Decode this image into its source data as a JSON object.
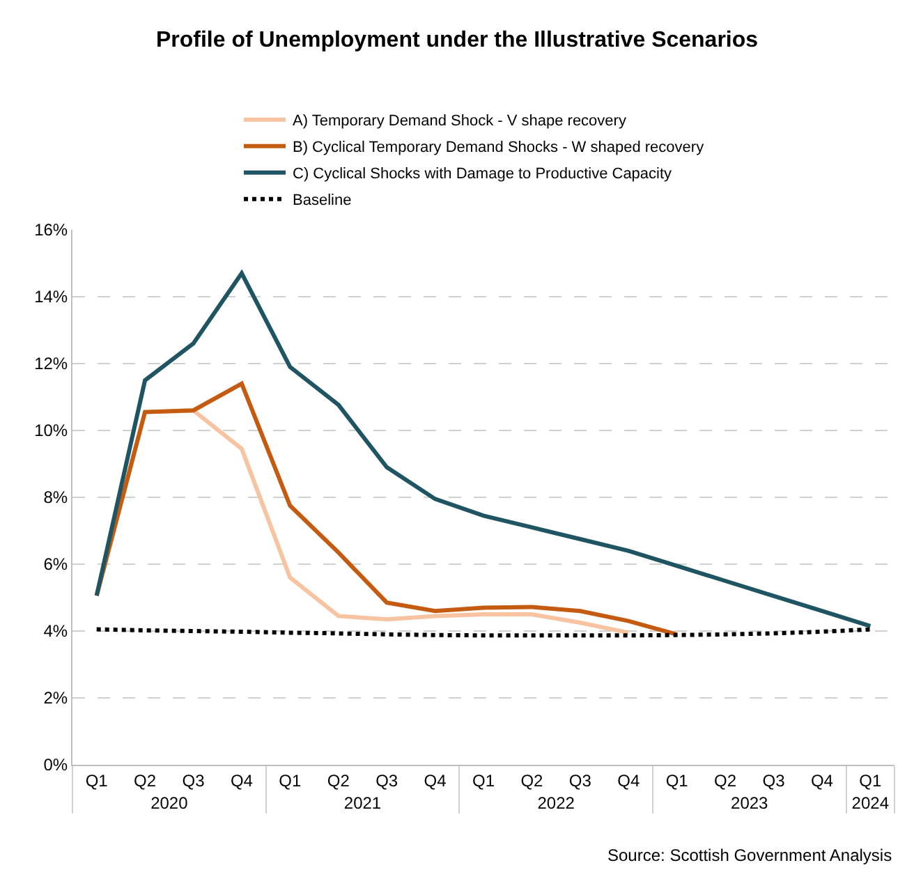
{
  "chart_data": {
    "type": "line",
    "title": "Profile of Unemployment under the Illustrative Scenarios",
    "categories": [
      "Q1",
      "Q2",
      "Q3",
      "Q4",
      "Q1",
      "Q2",
      "Q3",
      "Q4",
      "Q1",
      "Q2",
      "Q3",
      "Q4",
      "Q1",
      "Q2",
      "Q3",
      "Q4",
      "Q1"
    ],
    "series": [
      {
        "name": "A) Temporary Demand Shock - V shape recovery",
        "color": "#f7c3a0",
        "values": [
          5.06,
          10.55,
          10.6,
          9.45,
          5.6,
          4.45,
          4.35,
          4.45,
          4.5,
          4.5,
          4.25,
          3.95,
          null,
          null,
          null,
          null,
          null
        ]
      },
      {
        "name": "B) Cyclical Temporary Demand Shocks - W shaped recovery",
        "color": "#c55a11",
        "values": [
          5.06,
          10.55,
          10.6,
          11.4,
          7.75,
          6.35,
          4.85,
          4.6,
          4.7,
          4.72,
          4.6,
          4.3,
          3.9,
          null,
          null,
          null,
          null
        ]
      },
      {
        "name": "C) Cyclical Shocks with Damage to Productive Capacity",
        "color": "#1f5563",
        "values": [
          5.06,
          11.5,
          12.6,
          14.7,
          11.9,
          10.77,
          8.9,
          7.95,
          7.45,
          7.1,
          6.75,
          6.4,
          5.95,
          5.5,
          5.05,
          4.6,
          4.15
        ]
      },
      {
        "name": "Baseline",
        "color": "#000000",
        "line_style": "dotted",
        "values": [
          4.05,
          4.02,
          4.0,
          3.98,
          3.95,
          3.93,
          3.9,
          3.88,
          3.87,
          3.87,
          3.87,
          3.87,
          3.88,
          3.9,
          3.93,
          3.98,
          4.05
        ]
      }
    ],
    "ylim": [
      0,
      16
    ],
    "yticks": [
      {
        "value": 0,
        "label": "0%"
      },
      {
        "value": 2,
        "label": "2%"
      },
      {
        "value": 4,
        "label": "4%"
      },
      {
        "value": 6,
        "label": "6%"
      },
      {
        "value": 8,
        "label": "8%"
      },
      {
        "value": 10,
        "label": "10%"
      },
      {
        "value": 12,
        "label": "12%"
      },
      {
        "value": 14,
        "label": "14%"
      },
      {
        "value": 16,
        "label": "16%"
      }
    ],
    "grid": "y",
    "legend": "top",
    "marker": "none",
    "line_style": "solid",
    "annotations": [
      "2020",
      "2021",
      "2022",
      "2023",
      "2024",
      "Source: Scottish Government Analysis"
    ]
  }
}
